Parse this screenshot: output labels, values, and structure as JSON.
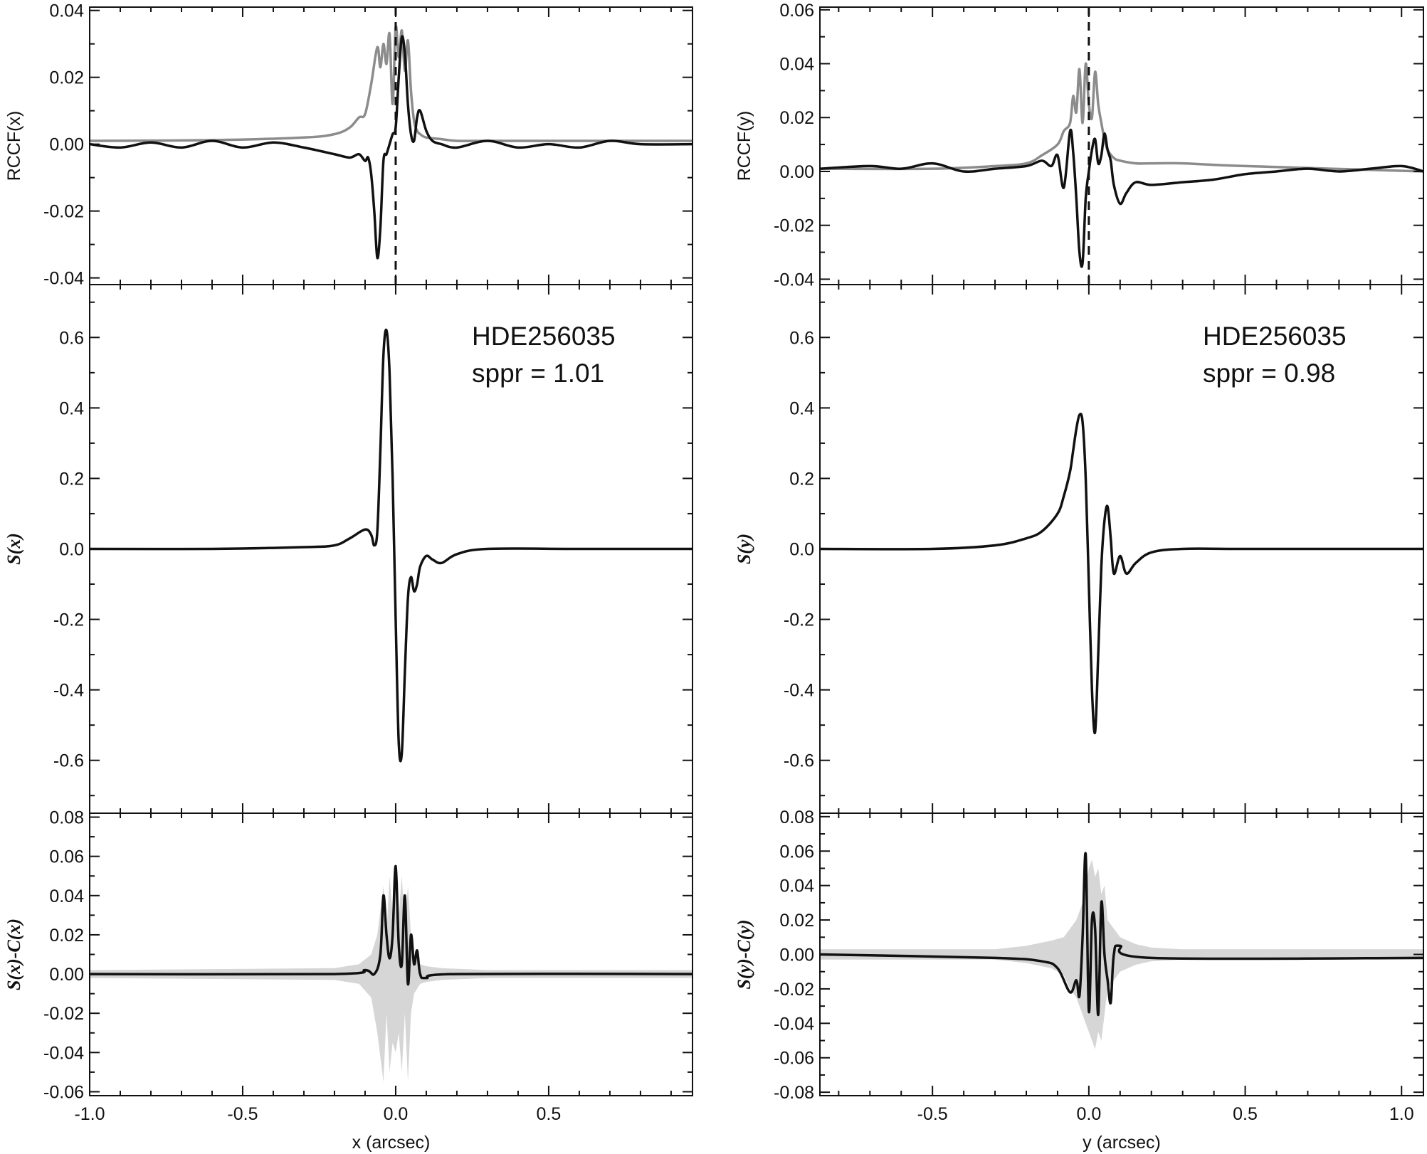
{
  "chart_data": [
    {
      "panel": "left-top",
      "type": "line",
      "ylabel": "RCCF(x)",
      "xlim": [
        -1.0,
        0.97
      ],
      "ylim": [
        -0.042,
        0.041
      ],
      "yticks": [
        -0.04,
        -0.02,
        0.0,
        0.02,
        0.04
      ],
      "ytick_labels": [
        "-0.04",
        "-0.02",
        "0.00",
        "0.02",
        "0.04"
      ],
      "vline_x": 0.0,
      "series": [
        {
          "color": "#8c8c8c",
          "style": "gray",
          "x": [
            -1.0,
            -0.6,
            -0.3,
            -0.2,
            -0.15,
            -0.12,
            -0.1,
            -0.08,
            -0.06,
            -0.05,
            -0.04,
            -0.03,
            -0.02,
            -0.01,
            0.0,
            0.01,
            0.02,
            0.03,
            0.04,
            0.05,
            0.06,
            0.07,
            0.08,
            0.1,
            0.15,
            0.2,
            0.3,
            0.6,
            0.97
          ],
          "y": [
            0.001,
            0.0012,
            0.002,
            0.003,
            0.005,
            0.008,
            0.009,
            0.018,
            0.029,
            0.023,
            0.03,
            0.024,
            0.033,
            0.012,
            0.035,
            0.026,
            0.034,
            0.022,
            0.031,
            0.016,
            0.007,
            0.004,
            0.003,
            0.002,
            0.0015,
            0.001,
            0.001,
            0.001,
            0.001
          ]
        },
        {
          "color": "#111111",
          "style": "black",
          "x": [
            -1.0,
            -0.9,
            -0.8,
            -0.7,
            -0.6,
            -0.5,
            -0.4,
            -0.3,
            -0.2,
            -0.15,
            -0.12,
            -0.1,
            -0.09,
            -0.08,
            -0.07,
            -0.06,
            -0.05,
            -0.04,
            -0.03,
            -0.02,
            -0.01,
            0.0,
            0.01,
            0.02,
            0.03,
            0.04,
            0.05,
            0.06,
            0.07,
            0.08,
            0.1,
            0.12,
            0.15,
            0.2,
            0.3,
            0.4,
            0.5,
            0.6,
            0.7,
            0.8,
            0.97
          ],
          "y": [
            0.0,
            -0.001,
            0.0005,
            -0.001,
            0.001,
            -0.001,
            0.0005,
            -0.001,
            -0.003,
            -0.004,
            -0.003,
            -0.005,
            -0.004,
            -0.009,
            -0.02,
            -0.034,
            -0.025,
            -0.005,
            -0.003,
            0.0,
            0.003,
            0.005,
            0.02,
            0.032,
            0.027,
            0.012,
            0.003,
            0.001,
            0.008,
            0.01,
            0.004,
            0.001,
            0.0,
            -0.001,
            0.001,
            -0.001,
            0.0,
            -0.001,
            0.001,
            0.0,
            0.0
          ]
        }
      ]
    },
    {
      "panel": "left-middle",
      "type": "line",
      "ylabel": "S(x)",
      "xlim": [
        -1.0,
        0.97
      ],
      "ylim": [
        -0.75,
        0.75
      ],
      "yticks": [
        -0.6,
        -0.4,
        -0.2,
        0.0,
        0.2,
        0.4,
        0.6
      ],
      "ytick_labels": [
        "-0.6",
        "-0.4",
        "-0.2",
        "0.0",
        "0.2",
        "0.4",
        "0.6"
      ],
      "annotation": [
        "HDE256035",
        "sppr = 1.01"
      ],
      "series": [
        {
          "color": "#111111",
          "x": [
            -1.0,
            -0.6,
            -0.3,
            -0.2,
            -0.15,
            -0.1,
            -0.08,
            -0.07,
            -0.06,
            -0.05,
            -0.04,
            -0.03,
            -0.02,
            -0.01,
            0.0,
            0.01,
            0.02,
            0.03,
            0.04,
            0.05,
            0.06,
            0.07,
            0.08,
            0.1,
            0.12,
            0.15,
            0.2,
            0.3,
            0.6,
            0.97
          ],
          "y": [
            0.0,
            0.0,
            0.005,
            0.01,
            0.03,
            0.055,
            0.04,
            0.01,
            0.05,
            0.28,
            0.55,
            0.62,
            0.5,
            0.2,
            -0.2,
            -0.55,
            -0.58,
            -0.35,
            -0.14,
            -0.08,
            -0.12,
            -0.1,
            -0.05,
            -0.02,
            -0.03,
            -0.04,
            -0.015,
            0.0,
            0.0,
            0.0
          ]
        }
      ]
    },
    {
      "panel": "left-bottom",
      "type": "line",
      "ylabel": "S(x)-C(x)",
      "xlabel": "x (arcsec)",
      "xlim": [
        -1.0,
        0.97
      ],
      "ylim": [
        -0.062,
        0.082
      ],
      "yticks": [
        -0.06,
        -0.04,
        -0.02,
        0.0,
        0.02,
        0.04,
        0.06,
        0.08
      ],
      "ytick_labels": [
        "-0.06",
        "-0.04",
        "-0.02",
        "0.00",
        "0.02",
        "0.04",
        "0.06",
        "0.08"
      ],
      "xticks": [
        -1.0,
        -0.5,
        0.0,
        0.5
      ],
      "xtick_labels": [
        "-1.0",
        "-0.5",
        "0.0",
        "0.5"
      ],
      "band": {
        "color": "#d6d6d6",
        "x": [
          -1.0,
          -0.2,
          -0.12,
          -0.08,
          -0.06,
          -0.04,
          -0.03,
          -0.02,
          -0.01,
          0.0,
          0.01,
          0.02,
          0.03,
          0.04,
          0.05,
          0.06,
          0.08,
          0.1,
          0.15,
          0.3,
          0.97
        ],
        "upper": [
          0.002,
          0.003,
          0.005,
          0.01,
          0.02,
          0.045,
          0.02,
          0.05,
          0.03,
          0.045,
          0.03,
          0.05,
          0.025,
          0.045,
          0.02,
          0.01,
          0.005,
          0.004,
          0.003,
          0.002,
          0.002
        ],
        "lower": [
          -0.002,
          -0.003,
          -0.005,
          -0.012,
          -0.03,
          -0.055,
          -0.02,
          -0.05,
          -0.035,
          -0.04,
          -0.03,
          -0.05,
          -0.02,
          -0.055,
          -0.02,
          -0.01,
          -0.005,
          -0.004,
          -0.003,
          -0.002,
          -0.002
        ]
      },
      "series": [
        {
          "color": "#111111",
          "x": [
            -1.0,
            -0.2,
            -0.1,
            -0.07,
            -0.05,
            -0.04,
            -0.03,
            -0.02,
            -0.01,
            0.0,
            0.01,
            0.02,
            0.03,
            0.04,
            0.05,
            0.06,
            0.07,
            0.08,
            0.1,
            0.2,
            0.97
          ],
          "y": [
            0.0,
            0.0,
            0.002,
            0.0,
            0.01,
            0.04,
            0.02,
            0.008,
            0.02,
            0.055,
            0.015,
            0.005,
            0.04,
            -0.005,
            0.02,
            0.005,
            0.012,
            0.0,
            -0.002,
            0.0,
            0.0
          ]
        }
      ]
    },
    {
      "panel": "right-top",
      "type": "line",
      "ylabel": "RCCF(y)",
      "xlim": [
        -0.86,
        1.07
      ],
      "ylim": [
        -0.042,
        0.061
      ],
      "yticks": [
        -0.04,
        -0.02,
        0.0,
        0.02,
        0.04,
        0.06
      ],
      "ytick_labels": [
        "-0.04",
        "-0.02",
        "0.00",
        "0.02",
        "0.04",
        "0.06"
      ],
      "vline_x": 0.0,
      "series": [
        {
          "color": "#8c8c8c",
          "style": "gray",
          "x": [
            -0.86,
            -0.5,
            -0.3,
            -0.2,
            -0.15,
            -0.1,
            -0.08,
            -0.06,
            -0.05,
            -0.04,
            -0.03,
            -0.02,
            -0.01,
            0.0,
            0.01,
            0.02,
            0.03,
            0.04,
            0.05,
            0.06,
            0.08,
            0.1,
            0.15,
            0.2,
            0.3,
            0.5,
            1.07
          ],
          "y": [
            0.001,
            0.001,
            0.002,
            0.003,
            0.006,
            0.01,
            0.015,
            0.018,
            0.028,
            0.022,
            0.038,
            0.018,
            0.04,
            0.025,
            0.02,
            0.037,
            0.025,
            0.018,
            0.012,
            0.008,
            0.005,
            0.004,
            0.003,
            0.003,
            0.003,
            0.002,
            0.0
          ]
        },
        {
          "color": "#111111",
          "style": "black",
          "x": [
            -0.86,
            -0.7,
            -0.6,
            -0.5,
            -0.4,
            -0.3,
            -0.2,
            -0.15,
            -0.12,
            -0.1,
            -0.08,
            -0.06,
            -0.05,
            -0.04,
            -0.03,
            -0.02,
            -0.01,
            0.0,
            0.01,
            0.02,
            0.03,
            0.04,
            0.05,
            0.06,
            0.07,
            0.08,
            0.1,
            0.12,
            0.15,
            0.2,
            0.3,
            0.4,
            0.5,
            0.6,
            0.7,
            0.8,
            0.9,
            1.0,
            1.07
          ],
          "y": [
            0.001,
            0.002,
            0.001,
            0.003,
            0.0,
            0.001,
            0.002,
            0.004,
            0.002,
            0.006,
            -0.006,
            0.015,
            0.007,
            -0.01,
            -0.03,
            -0.034,
            -0.01,
            0.0,
            0.008,
            0.012,
            0.003,
            0.006,
            0.014,
            0.008,
            0.004,
            -0.005,
            -0.012,
            -0.008,
            -0.004,
            -0.005,
            -0.004,
            -0.003,
            -0.001,
            0.0,
            0.001,
            0.0,
            0.001,
            0.002,
            0.0
          ]
        }
      ]
    },
    {
      "panel": "right-middle",
      "type": "line",
      "ylabel": "S(y)",
      "xlim": [
        -0.86,
        1.07
      ],
      "ylim": [
        -0.75,
        0.75
      ],
      "yticks": [
        -0.6,
        -0.4,
        -0.2,
        0.0,
        0.2,
        0.4,
        0.6
      ],
      "ytick_labels": [
        "-0.6",
        "-0.4",
        "-0.2",
        "0.0",
        "0.2",
        "0.4",
        "0.6"
      ],
      "annotation": [
        "HDE256035",
        "sppr = 0.98"
      ],
      "series": [
        {
          "color": "#111111",
          "x": [
            -0.86,
            -0.5,
            -0.3,
            -0.2,
            -0.15,
            -0.1,
            -0.08,
            -0.06,
            -0.05,
            -0.04,
            -0.03,
            -0.02,
            -0.01,
            0.0,
            0.01,
            0.02,
            0.03,
            0.04,
            0.05,
            0.06,
            0.07,
            0.08,
            0.1,
            0.12,
            0.15,
            0.2,
            0.3,
            0.5,
            1.07
          ],
          "y": [
            0.0,
            0.0,
            0.01,
            0.03,
            0.05,
            0.1,
            0.15,
            0.22,
            0.28,
            0.34,
            0.38,
            0.36,
            0.2,
            -0.1,
            -0.4,
            -0.52,
            -0.3,
            -0.05,
            0.08,
            0.12,
            0.03,
            -0.07,
            -0.02,
            -0.07,
            -0.04,
            -0.01,
            0.0,
            0.0,
            0.0
          ]
        }
      ]
    },
    {
      "panel": "right-bottom",
      "type": "line",
      "ylabel": "S(y)-C(y)",
      "xlabel": "y (arcsec)",
      "xlim": [
        -0.86,
        1.07
      ],
      "ylim": [
        -0.082,
        0.082
      ],
      "yticks": [
        -0.08,
        -0.06,
        -0.04,
        -0.02,
        0.0,
        0.02,
        0.04,
        0.06,
        0.08
      ],
      "ytick_labels": [
        "-0.08",
        "-0.06",
        "-0.04",
        "-0.02",
        "0.00",
        "0.02",
        "0.04",
        "0.06",
        "0.08"
      ],
      "xticks": [
        -0.5,
        0.0,
        0.5,
        1.0
      ],
      "xtick_labels": [
        "-0.5",
        "0.0",
        "0.5",
        "1.0"
      ],
      "band": {
        "color": "#d6d6d6",
        "x": [
          -0.86,
          -0.3,
          -0.2,
          -0.12,
          -0.08,
          -0.06,
          -0.04,
          -0.03,
          -0.02,
          -0.01,
          0.0,
          0.01,
          0.02,
          0.03,
          0.04,
          0.05,
          0.06,
          0.08,
          0.1,
          0.15,
          0.2,
          0.3,
          1.07
        ],
        "upper": [
          0.003,
          0.003,
          0.005,
          0.008,
          0.01,
          0.015,
          0.02,
          0.025,
          0.03,
          0.04,
          0.05,
          0.055,
          0.045,
          0.05,
          0.035,
          0.04,
          0.02,
          0.015,
          0.01,
          0.006,
          0.004,
          0.003,
          0.003
        ],
        "lower": [
          -0.003,
          -0.003,
          -0.005,
          -0.008,
          -0.012,
          -0.02,
          -0.025,
          -0.03,
          -0.035,
          -0.04,
          -0.045,
          -0.05,
          -0.055,
          -0.045,
          -0.05,
          -0.035,
          -0.02,
          -0.015,
          -0.01,
          -0.006,
          -0.004,
          -0.003,
          -0.003
        ]
      },
      "series": [
        {
          "color": "#111111",
          "x": [
            -0.86,
            -0.3,
            -0.15,
            -0.1,
            -0.06,
            -0.04,
            -0.03,
            -0.02,
            -0.01,
            0.0,
            0.01,
            0.02,
            0.03,
            0.04,
            0.05,
            0.06,
            0.07,
            0.08,
            0.1,
            0.2,
            1.07
          ],
          "y": [
            0.0,
            -0.002,
            -0.004,
            -0.008,
            -0.022,
            -0.015,
            -0.024,
            0.01,
            0.058,
            -0.033,
            0.02,
            0.015,
            -0.035,
            0.03,
            0.0,
            -0.015,
            -0.028,
            0.0,
            0.005,
            -0.002,
            -0.002
          ]
        }
      ]
    }
  ]
}
